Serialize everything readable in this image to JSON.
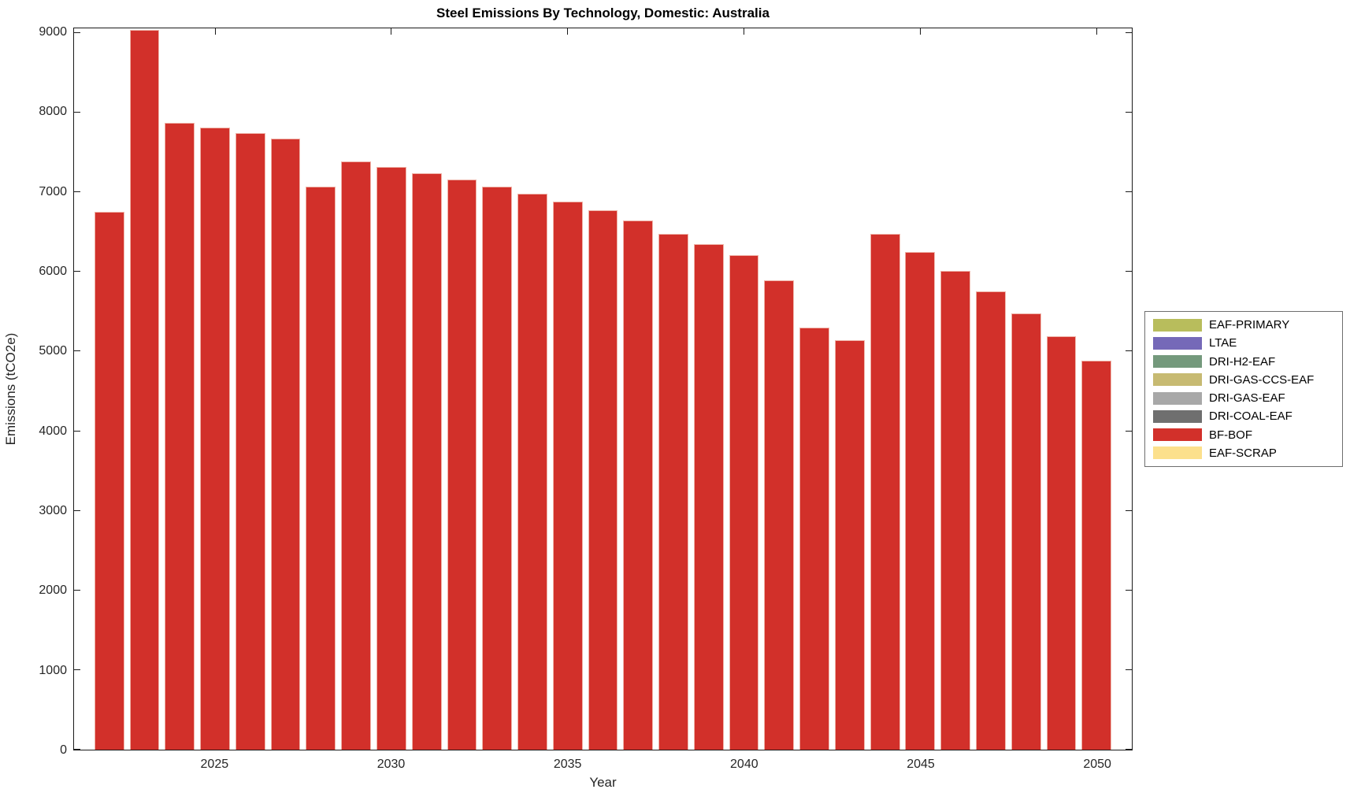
{
  "chart_data": {
    "type": "bar",
    "title": "Steel Emissions By Technology, Domestic: Australia",
    "xlabel": "Year",
    "ylabel": "Emissions (tCO2e)",
    "grid": false,
    "legend_position": "right-outside",
    "xlim": [
      2021,
      2051
    ],
    "ylim": [
      0,
      9060
    ],
    "yticks": [
      0,
      1000,
      2000,
      3000,
      4000,
      5000,
      6000,
      7000,
      8000,
      9000
    ],
    "xticks": [
      2025,
      2030,
      2035,
      2040,
      2045,
      2050
    ],
    "categories": [
      2022,
      2023,
      2024,
      2025,
      2026,
      2027,
      2028,
      2029,
      2030,
      2031,
      2032,
      2033,
      2034,
      2035,
      2036,
      2037,
      2038,
      2039,
      2040,
      2041,
      2042,
      2043,
      2044,
      2045,
      2046,
      2047,
      2048,
      2049,
      2050
    ],
    "series": [
      {
        "name": "BF-BOF",
        "color": "#d2302a",
        "values": [
          6760,
          9040,
          7870,
          7810,
          7740,
          7680,
          7070,
          7390,
          7320,
          7240,
          7160,
          7070,
          6980,
          6880,
          6780,
          6650,
          6480,
          6350,
          6210,
          5900,
          5300,
          5140,
          6480,
          6250,
          6010,
          5760,
          5480,
          5190,
          4890
        ]
      }
    ],
    "legend": [
      {
        "label": "EAF-PRIMARY",
        "color": "#b8bd5c"
      },
      {
        "label": "LTAE",
        "color": "#7569b8"
      },
      {
        "label": "DRI-H2-EAF",
        "color": "#74997c"
      },
      {
        "label": "DRI-GAS-CCS-EAF",
        "color": "#c7ba72"
      },
      {
        "label": "DRI-GAS-EAF",
        "color": "#a8a8a8"
      },
      {
        "label": "DRI-COAL-EAF",
        "color": "#6f6f6f"
      },
      {
        "label": "BF-BOF",
        "color": "#d2302a"
      },
      {
        "label": "EAF-SCRAP",
        "color": "#fce08c"
      }
    ]
  }
}
